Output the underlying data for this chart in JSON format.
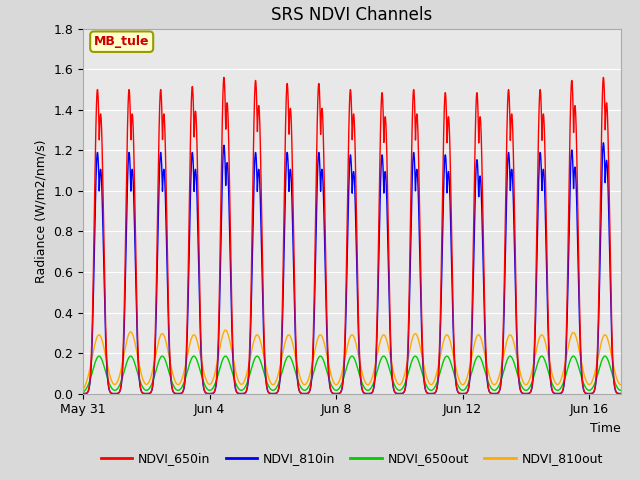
{
  "title": "SRS NDVI Channels",
  "xlabel": "Time",
  "ylabel": "Radiance (W/m2/nm/s)",
  "annotation": "MB_tule",
  "annotation_bg": "#ffffcc",
  "annotation_border": "#999900",
  "annotation_text_color": "#cc0000",
  "ylim": [
    0.0,
    1.8
  ],
  "yticks": [
    0.0,
    0.2,
    0.4,
    0.6,
    0.8,
    1.0,
    1.2,
    1.4,
    1.6,
    1.8
  ],
  "plot_bg_color": "#e8e8e8",
  "fig_bg_color": "#d9d9d9",
  "grid_color": "#ffffff",
  "series_colors": [
    "#ff0000",
    "#0000ff",
    "#00cc00",
    "#ffaa00"
  ],
  "series_labels": [
    "NDVI_650in",
    "NDVI_810in",
    "NDVI_650out",
    "NDVI_810out"
  ],
  "series_lw": 1.0,
  "xtick_labels": [
    "May 31",
    "Jun 4",
    "Jun 8",
    "Jun 12",
    "Jun 16"
  ],
  "xtick_positions": [
    0,
    4,
    8,
    12,
    16
  ],
  "n_days": 17,
  "peak_650in": 1.5,
  "peak_810in": 1.19,
  "peak_650out": 0.185,
  "peak_810out": 0.29,
  "title_fontsize": 12,
  "axis_fontsize": 9,
  "tick_fontsize": 9,
  "legend_fontsize": 9
}
